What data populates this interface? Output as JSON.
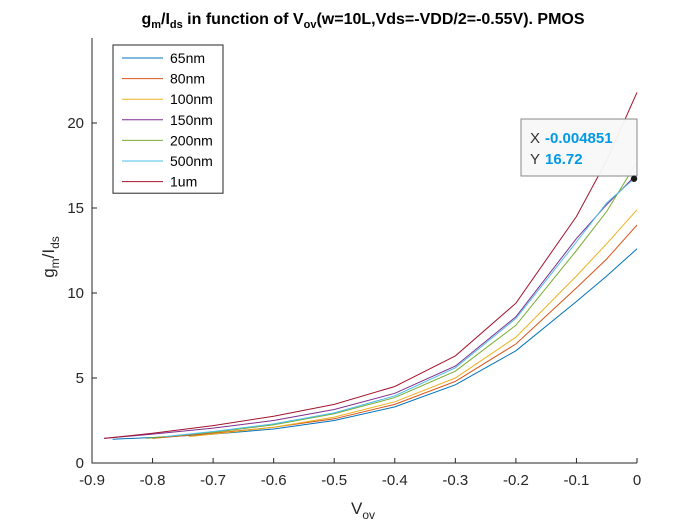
{
  "chart_data": {
    "type": "line",
    "title": {
      "g": "g",
      "m": "m",
      "slash": "/I",
      "ds": "ds",
      "mid": " in function of V",
      "ov": "ov",
      "tail": "(w=10L,Vds=-VDD/2=-0.55V). PMOS"
    },
    "xlabel": {
      "main": "V",
      "sub": "ov"
    },
    "ylabel": {
      "g": "g",
      "m": "m",
      "slash": "/I",
      "ds": "ds"
    },
    "xlim": [
      -0.9,
      0
    ],
    "ylim": [
      0,
      25
    ],
    "xticks": [
      -0.9,
      -0.8,
      -0.7,
      -0.6,
      -0.5,
      -0.4,
      -0.3,
      -0.2,
      -0.1,
      0
    ],
    "xtick_labels": [
      "-0.9",
      "-0.8",
      "-0.7",
      "-0.6",
      "-0.5",
      "-0.4",
      "-0.3",
      "-0.2",
      "-0.1",
      "0"
    ],
    "yticks": [
      0,
      5,
      10,
      15,
      20
    ],
    "ytick_labels": [
      "0",
      "5",
      "10",
      "15",
      "20"
    ],
    "grid": false,
    "legend_position": "top-left",
    "series": [
      {
        "name": "65nm",
        "color": "#0072BD",
        "x": [
          -0.866,
          -0.8,
          -0.7,
          -0.6,
          -0.5,
          -0.4,
          -0.3,
          -0.2,
          -0.1,
          -0.05,
          0
        ],
        "y": [
          1.4,
          1.5,
          1.7,
          2.0,
          2.5,
          3.3,
          4.6,
          6.6,
          9.5,
          11.0,
          12.6
        ]
      },
      {
        "name": "80nm",
        "color": "#D95319",
        "x": [
          -0.8,
          -0.7,
          -0.6,
          -0.5,
          -0.4,
          -0.3,
          -0.2,
          -0.1,
          -0.05,
          0
        ],
        "y": [
          1.45,
          1.75,
          2.1,
          2.6,
          3.45,
          4.8,
          7.0,
          10.3,
          12.0,
          14.0
        ]
      },
      {
        "name": "100nm",
        "color": "#EDB120",
        "x": [
          -0.74,
          -0.7,
          -0.6,
          -0.5,
          -0.4,
          -0.3,
          -0.2,
          -0.1,
          -0.05,
          0
        ],
        "y": [
          1.55,
          1.7,
          2.1,
          2.7,
          3.6,
          5.0,
          7.4,
          11.0,
          12.9,
          14.9
        ]
      },
      {
        "name": "150nm",
        "color": "#7E2F8E",
        "x": [
          -0.88,
          -0.8,
          -0.7,
          -0.6,
          -0.5,
          -0.4,
          -0.3,
          -0.2,
          -0.1,
          -0.05,
          0
        ],
        "y": [
          1.45,
          1.7,
          2.05,
          2.5,
          3.15,
          4.1,
          5.7,
          8.6,
          13.2,
          15.2,
          17.0
        ]
      },
      {
        "name": "200nm",
        "color": "#77AC30",
        "x": [
          -0.81,
          -0.7,
          -0.6,
          -0.5,
          -0.4,
          -0.3,
          -0.2,
          -0.1,
          -0.05,
          0
        ],
        "y": [
          1.45,
          1.8,
          2.25,
          2.9,
          3.85,
          5.4,
          8.1,
          12.5,
          14.8,
          17.7
        ]
      },
      {
        "name": "500nm",
        "color": "#4DBEEE",
        "x": [
          -0.78,
          -0.7,
          -0.6,
          -0.5,
          -0.4,
          -0.3,
          -0.2,
          -0.1,
          -0.05,
          -0.005
        ],
        "y": [
          1.55,
          1.85,
          2.3,
          2.95,
          3.95,
          5.6,
          8.5,
          13.0,
          15.3,
          16.72
        ]
      },
      {
        "name": "1um",
        "color": "#A2142F",
        "x": [
          -0.88,
          -0.8,
          -0.7,
          -0.6,
          -0.5,
          -0.4,
          -0.3,
          -0.2,
          -0.1,
          -0.05,
          0
        ],
        "y": [
          1.45,
          1.75,
          2.2,
          2.75,
          3.45,
          4.5,
          6.3,
          9.4,
          14.5,
          17.8,
          21.8
        ]
      }
    ],
    "datatip": {
      "x_label": "X",
      "x_value": "-0.004851",
      "y_label": "Y",
      "y_value": "16.72",
      "x": -0.004851,
      "y": 16.72
    }
  }
}
